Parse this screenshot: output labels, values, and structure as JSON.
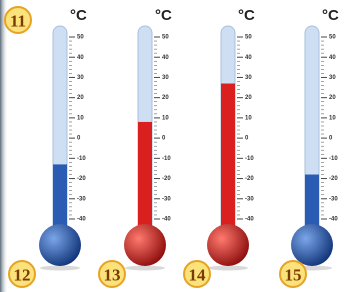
{
  "unit": "°C",
  "scale_ticks": [
    50,
    40,
    30,
    20,
    10,
    0,
    -10,
    -20,
    -30,
    -40
  ],
  "labels": {
    "top": "11",
    "bottom": [
      "12",
      "13",
      "14",
      "15"
    ]
  },
  "thermometers": [
    {
      "reading": -13,
      "color": "#2a5cb3"
    },
    {
      "reading": 8,
      "color": "#d9201e"
    },
    {
      "reading": 27,
      "color": "#d9201e"
    },
    {
      "reading": -18,
      "color": "#2a5cb3"
    }
  ]
}
